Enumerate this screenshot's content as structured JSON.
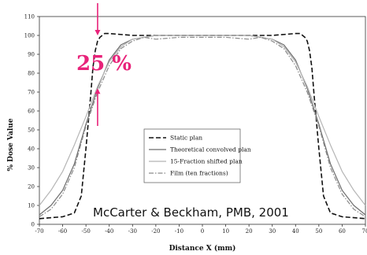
{
  "chart_data": {
    "type": "line",
    "xlabel": "Distance X (mm)",
    "ylabel": "% Dose Value",
    "xlim": [
      -70,
      70
    ],
    "ylim": [
      0,
      110
    ],
    "xticks": [
      -70,
      -60,
      -50,
      -40,
      -30,
      -20,
      -10,
      0,
      10,
      20,
      30,
      40,
      50,
      60,
      70
    ],
    "yticks": [
      0,
      10,
      20,
      30,
      40,
      50,
      60,
      70,
      80,
      90,
      100,
      110
    ],
    "grid": false,
    "legend_position": "lower-center",
    "series": [
      {
        "name": "Static plan",
        "style": "dashed",
        "color": "#111111",
        "x": [
          -70,
          -60,
          -55,
          -52,
          -50,
          -48,
          -47,
          -46,
          -45,
          -44,
          -43,
          -42,
          -40,
          -30,
          -20,
          0,
          20,
          30,
          40,
          42,
          43,
          44,
          45,
          46,
          47,
          48,
          50,
          52,
          55,
          60,
          70
        ],
        "y": [
          3,
          4,
          6,
          15,
          40,
          68,
          83,
          92,
          97,
          99,
          100,
          101,
          101,
          100,
          100,
          100,
          100,
          100,
          101,
          101,
          100,
          99,
          97,
          92,
          83,
          68,
          40,
          15,
          6,
          4,
          3
        ]
      },
      {
        "name": "Theoretical convolved plan",
        "style": "solid",
        "color": "#6e6e6e",
        "x": [
          -70,
          -65,
          -60,
          -55,
          -50,
          -45,
          -40,
          -35,
          -30,
          -25,
          -20,
          0,
          20,
          25,
          30,
          35,
          40,
          45,
          50,
          55,
          60,
          65,
          70
        ],
        "y": [
          5,
          10,
          18,
          32,
          53,
          72,
          87,
          95,
          98,
          99,
          100,
          100,
          100,
          99,
          98,
          95,
          87,
          72,
          53,
          32,
          18,
          10,
          5
        ]
      },
      {
        "name": "15-Fraction shifted plan",
        "style": "solid",
        "color": "#b5b5b5",
        "x": [
          -70,
          -65,
          -60,
          -55,
          -50,
          -45,
          -40,
          -35,
          -30,
          -25,
          -20,
          0,
          20,
          25,
          30,
          35,
          40,
          45,
          50,
          55,
          60,
          65,
          70
        ],
        "y": [
          10,
          18,
          28,
          42,
          57,
          73,
          86,
          94,
          98,
          99,
          100,
          100,
          100,
          99,
          98,
          94,
          86,
          73,
          57,
          42,
          28,
          18,
          10
        ]
      },
      {
        "name": "Film (ten fractions)",
        "style": "dash-dot",
        "color": "#8a8a8a",
        "x": [
          -70,
          -65,
          -60,
          -55,
          -50,
          -45,
          -40,
          -35,
          -30,
          -25,
          -20,
          -10,
          0,
          10,
          20,
          25,
          30,
          35,
          40,
          45,
          50,
          55,
          60,
          65,
          70
        ],
        "y": [
          4,
          8,
          16,
          30,
          52,
          70,
          84,
          93,
          97,
          99,
          98,
          99,
          99,
          99,
          98,
          99,
          97,
          93,
          84,
          70,
          52,
          30,
          16,
          8,
          4
        ]
      }
    ],
    "annotations": {
      "percent_label": "25 %",
      "arrow_x": -45,
      "arrow_top_y": 100,
      "arrow_bottom_y": 72
    },
    "credit": "McCarter & Beckham, PMB, 2001"
  }
}
